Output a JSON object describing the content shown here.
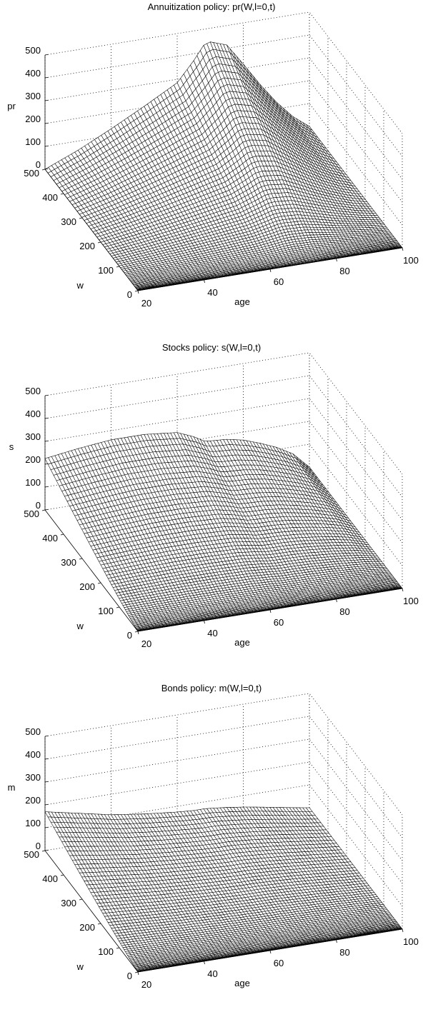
{
  "chart_data": [
    {
      "type": "surface",
      "title": "Annuitization policy: pr(W,l=0,t)",
      "xlabel": "age",
      "ylabel": "w",
      "zlabel": "pr",
      "x_range": [
        20,
        100
      ],
      "y_range": [
        0,
        500
      ],
      "z_range": [
        0,
        500
      ],
      "x_ticks": [
        20,
        40,
        60,
        80,
        100
      ],
      "y_ticks": [
        0,
        100,
        200,
        300,
        400,
        500
      ],
      "z_ticks": [
        0,
        100,
        200,
        300,
        400,
        500
      ],
      "grid": true,
      "surface_knots": {
        "age": [
          20,
          30,
          40,
          50,
          60,
          65,
          68,
          70,
          75,
          80,
          85,
          90,
          95,
          100
        ],
        "value_at_w500": [
          0,
          60,
          130,
          205,
          285,
          370,
          430,
          440,
          415,
          320,
          220,
          130,
          55,
          0
        ]
      }
    },
    {
      "type": "surface",
      "title": "Stocks policy: s(W,l=0,t)",
      "xlabel": "age",
      "ylabel": "w",
      "zlabel": "s",
      "x_range": [
        20,
        100
      ],
      "y_range": [
        0,
        500
      ],
      "z_range": [
        0,
        500
      ],
      "x_ticks": [
        20,
        40,
        60,
        80,
        100
      ],
      "y_ticks": [
        0,
        100,
        200,
        300,
        400,
        500
      ],
      "z_ticks": [
        0,
        100,
        200,
        300,
        400,
        500
      ],
      "grid": true,
      "surface_knots": {
        "age": [
          20,
          30,
          40,
          50,
          60,
          65,
          68,
          70,
          75,
          80,
          85,
          90,
          95,
          100
        ],
        "value_at_w500": [
          225,
          245,
          260,
          260,
          245,
          215,
          190,
          185,
          180,
          165,
          140,
          110,
          70,
          0
        ]
      }
    },
    {
      "type": "surface",
      "title": "Bonds policy: m(W,l=0,t)",
      "xlabel": "age",
      "ylabel": "w",
      "zlabel": "m",
      "x_range": [
        20,
        100
      ],
      "y_range": [
        0,
        500
      ],
      "z_range": [
        0,
        500
      ],
      "x_ticks": [
        20,
        40,
        60,
        80,
        100
      ],
      "y_ticks": [
        0,
        100,
        200,
        300,
        400,
        500
      ],
      "z_ticks": [
        0,
        100,
        200,
        300,
        400,
        500
      ],
      "grid": true,
      "surface_knots": {
        "age": [
          20,
          30,
          40,
          50,
          60,
          65,
          68,
          70,
          75,
          80,
          85,
          90,
          95,
          100
        ],
        "value_at_w500": [
          170,
          140,
          110,
          90,
          75,
          70,
          70,
          68,
          60,
          50,
          38,
          25,
          12,
          0
        ]
      }
    }
  ]
}
